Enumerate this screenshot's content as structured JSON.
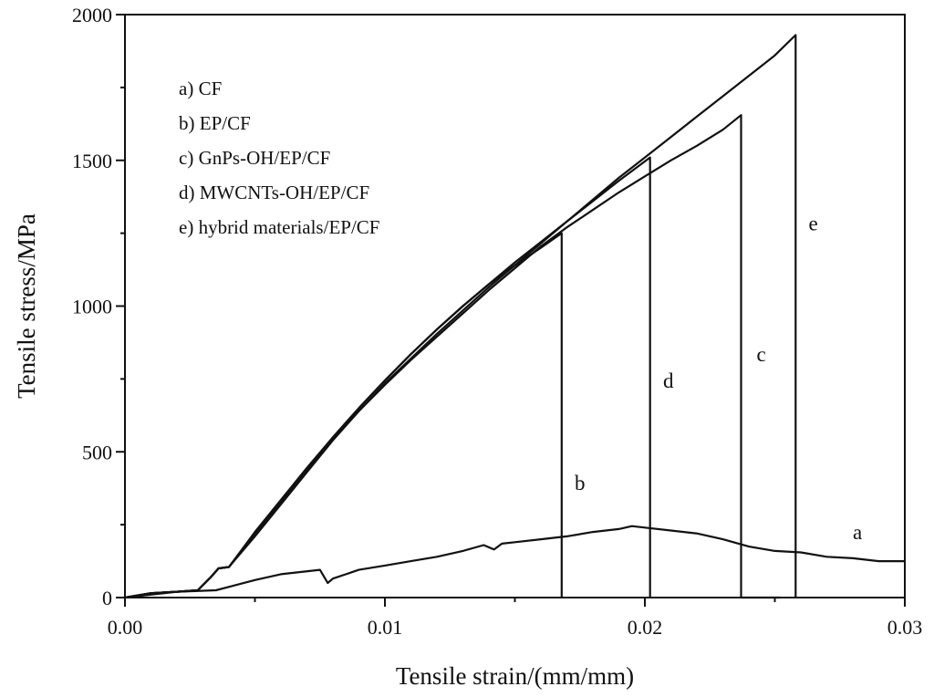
{
  "chart_data": {
    "type": "line",
    "title": "",
    "xlabel": "Tensile strain/(mm/mm)",
    "ylabel": "Tensile stress/MPa",
    "xlim": [
      0,
      0.03
    ],
    "ylim": [
      0,
      2000
    ],
    "x_ticks": [
      0,
      0.01,
      0.02,
      0.03
    ],
    "x_tick_labels": [
      "0.00",
      "0.01",
      "0.02",
      "0.03"
    ],
    "y_ticks": [
      0,
      500,
      1000,
      1500,
      2000
    ],
    "y_tick_labels": [
      "0",
      "500",
      "1000",
      "1500",
      "2000"
    ],
    "grid": false,
    "legend_position": "top-left",
    "legend": [
      "a) CF",
      "b) EP/CF",
      "c) GnPs-OH/EP/CF",
      "d) MWCNTs-OH/EP/CF",
      "e) hybrid materials/EP/CF"
    ],
    "series": [
      {
        "id": "a",
        "label": "a",
        "label_at": [
          0.028,
          200
        ],
        "points": [
          [
            0,
            0
          ],
          [
            0.001,
            10
          ],
          [
            0.002,
            20
          ],
          [
            0.0035,
            25
          ],
          [
            0.005,
            60
          ],
          [
            0.006,
            80
          ],
          [
            0.0075,
            95
          ],
          [
            0.0078,
            50
          ],
          [
            0.008,
            65
          ],
          [
            0.009,
            95
          ],
          [
            0.01,
            110
          ],
          [
            0.011,
            125
          ],
          [
            0.012,
            140
          ],
          [
            0.013,
            160
          ],
          [
            0.0138,
            180
          ],
          [
            0.0142,
            165
          ],
          [
            0.0145,
            185
          ],
          [
            0.015,
            190
          ],
          [
            0.016,
            200
          ],
          [
            0.017,
            210
          ],
          [
            0.018,
            225
          ],
          [
            0.019,
            235
          ],
          [
            0.0195,
            245
          ],
          [
            0.02,
            240
          ],
          [
            0.021,
            230
          ],
          [
            0.022,
            220
          ],
          [
            0.023,
            200
          ],
          [
            0.024,
            175
          ],
          [
            0.025,
            160
          ],
          [
            0.026,
            155
          ],
          [
            0.027,
            140
          ],
          [
            0.028,
            135
          ],
          [
            0.029,
            125
          ],
          [
            0.03,
            125
          ]
        ]
      },
      {
        "id": "b",
        "label": "b",
        "label_at": [
          0.0173,
          370
        ],
        "points": [
          [
            0,
            0
          ],
          [
            0.001,
            15
          ],
          [
            0.002,
            20
          ],
          [
            0.0028,
            25
          ],
          [
            0.0033,
            70
          ],
          [
            0.0036,
            100
          ],
          [
            0.004,
            105
          ],
          [
            0.005,
            225
          ],
          [
            0.006,
            335
          ],
          [
            0.007,
            445
          ],
          [
            0.008,
            550
          ],
          [
            0.009,
            650
          ],
          [
            0.01,
            745
          ],
          [
            0.011,
            835
          ],
          [
            0.012,
            920
          ],
          [
            0.013,
            1000
          ],
          [
            0.014,
            1075
          ],
          [
            0.015,
            1140
          ],
          [
            0.016,
            1200
          ],
          [
            0.0168,
            1250
          ],
          [
            0.0168,
            0
          ]
        ]
      },
      {
        "id": "c",
        "label": "c",
        "label_at": [
          0.0243,
          810
        ],
        "points": [
          [
            0,
            0
          ],
          [
            0.001,
            15
          ],
          [
            0.002,
            20
          ],
          [
            0.0028,
            25
          ],
          [
            0.0033,
            70
          ],
          [
            0.0036,
            100
          ],
          [
            0.004,
            105
          ],
          [
            0.005,
            220
          ],
          [
            0.006,
            330
          ],
          [
            0.007,
            440
          ],
          [
            0.008,
            545
          ],
          [
            0.009,
            640
          ],
          [
            0.01,
            730
          ],
          [
            0.011,
            815
          ],
          [
            0.012,
            895
          ],
          [
            0.013,
            975
          ],
          [
            0.014,
            1055
          ],
          [
            0.015,
            1130
          ],
          [
            0.016,
            1205
          ],
          [
            0.017,
            1270
          ],
          [
            0.018,
            1330
          ],
          [
            0.019,
            1390
          ],
          [
            0.02,
            1445
          ],
          [
            0.021,
            1500
          ],
          [
            0.022,
            1550
          ],
          [
            0.023,
            1605
          ],
          [
            0.0237,
            1655
          ],
          [
            0.0237,
            0
          ],
          [
            0.0252,
            0
          ]
        ]
      },
      {
        "id": "d",
        "label": "d",
        "label_at": [
          0.0207,
          720
        ],
        "points": [
          [
            0,
            0
          ],
          [
            0.001,
            15
          ],
          [
            0.002,
            20
          ],
          [
            0.0028,
            25
          ],
          [
            0.0033,
            70
          ],
          [
            0.0036,
            100
          ],
          [
            0.004,
            105
          ],
          [
            0.005,
            220
          ],
          [
            0.006,
            330
          ],
          [
            0.007,
            440
          ],
          [
            0.008,
            550
          ],
          [
            0.009,
            650
          ],
          [
            0.01,
            745
          ],
          [
            0.011,
            835
          ],
          [
            0.012,
            920
          ],
          [
            0.013,
            1000
          ],
          [
            0.014,
            1075
          ],
          [
            0.015,
            1150
          ],
          [
            0.016,
            1220
          ],
          [
            0.017,
            1290
          ],
          [
            0.018,
            1360
          ],
          [
            0.019,
            1430
          ],
          [
            0.0202,
            1510
          ],
          [
            0.0202,
            0
          ]
        ]
      },
      {
        "id": "e",
        "label": "e",
        "label_at": [
          0.0263,
          1260
        ],
        "points": [
          [
            0,
            0
          ],
          [
            0.001,
            15
          ],
          [
            0.002,
            20
          ],
          [
            0.0028,
            25
          ],
          [
            0.0033,
            70
          ],
          [
            0.0036,
            100
          ],
          [
            0.004,
            105
          ],
          [
            0.005,
            210
          ],
          [
            0.006,
            320
          ],
          [
            0.007,
            430
          ],
          [
            0.008,
            540
          ],
          [
            0.009,
            640
          ],
          [
            0.01,
            735
          ],
          [
            0.011,
            820
          ],
          [
            0.012,
            905
          ],
          [
            0.013,
            985
          ],
          [
            0.014,
            1065
          ],
          [
            0.015,
            1140
          ],
          [
            0.016,
            1215
          ],
          [
            0.017,
            1290
          ],
          [
            0.018,
            1365
          ],
          [
            0.019,
            1440
          ],
          [
            0.02,
            1510
          ],
          [
            0.021,
            1580
          ],
          [
            0.022,
            1650
          ],
          [
            0.023,
            1720
          ],
          [
            0.024,
            1790
          ],
          [
            0.025,
            1860
          ],
          [
            0.0258,
            1930
          ],
          [
            0.0258,
            0
          ]
        ]
      }
    ]
  }
}
